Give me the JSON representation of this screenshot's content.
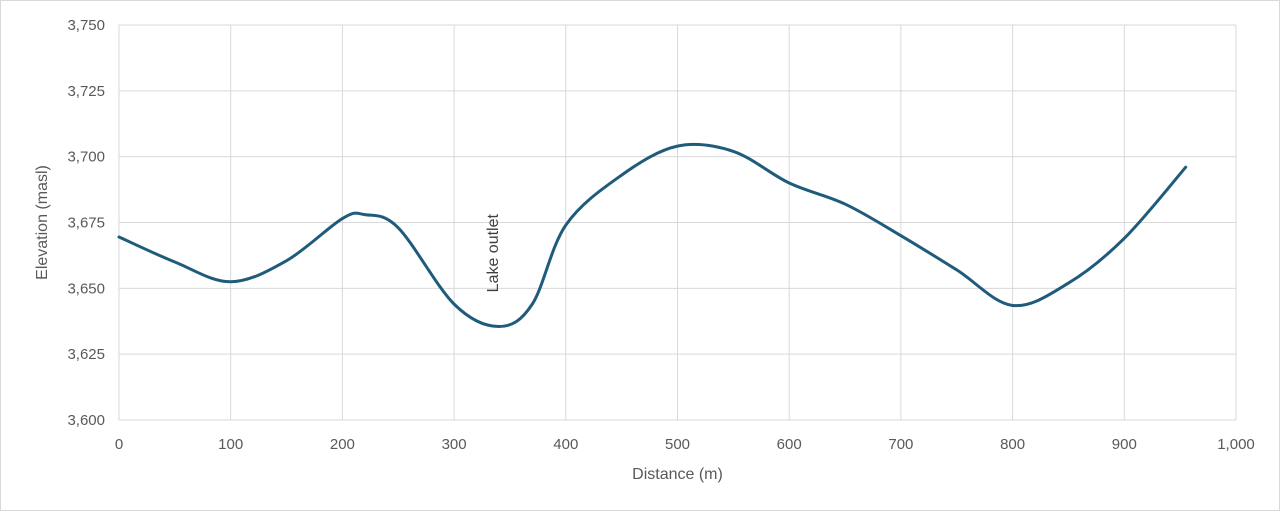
{
  "chart_data": {
    "type": "line",
    "title": "",
    "xlabel": "Distance (m)",
    "ylabel": "Elevation (masl)",
    "xlim": [
      0,
      1000
    ],
    "ylim": [
      3600,
      3750
    ],
    "x_ticks": [
      0,
      100,
      200,
      300,
      400,
      500,
      600,
      700,
      800,
      900,
      1000
    ],
    "x_tick_labels": [
      "0",
      "100",
      "200",
      "300",
      "400",
      "500",
      "600",
      "700",
      "800",
      "900",
      "1,000"
    ],
    "y_ticks": [
      3600,
      3625,
      3650,
      3675,
      3700,
      3725,
      3750
    ],
    "y_tick_labels": [
      "3,600",
      "3,625",
      "3,650",
      "3,675",
      "3,700",
      "3,725",
      "3,750"
    ],
    "grid": true,
    "legend": "none",
    "line_color": "#1f5b7a",
    "series": [
      {
        "x": [
          0,
          50,
          100,
          150,
          200,
          220,
          250,
          300,
          340,
          370,
          400,
          450,
          500,
          550,
          600,
          650,
          700,
          750,
          800,
          850,
          900,
          955
        ],
        "y": [
          3669.5,
          3660,
          3652.5,
          3660.5,
          3676.5,
          3678,
          3673,
          3644,
          3635.5,
          3644,
          3674,
          3693,
          3704,
          3702,
          3690,
          3682,
          3670,
          3657,
          3643.5,
          3652,
          3669,
          3696
        ]
      }
    ],
    "annotations": [
      {
        "text": "Lake outlet",
        "x": 335,
        "y": 3650,
        "rotation": -90
      }
    ]
  }
}
